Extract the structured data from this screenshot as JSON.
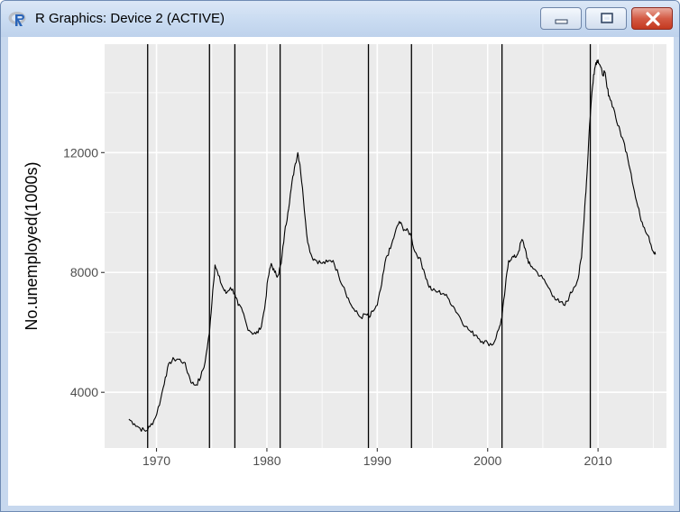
{
  "window": {
    "title": "R Graphics: Device 2 (ACTIVE)",
    "icon": "r-logo-icon",
    "buttons": [
      "minimize-icon",
      "maximize-icon",
      "close-icon"
    ]
  },
  "chart_data": {
    "type": "line",
    "title": "",
    "xlabel": "",
    "ylabel": "No.unemployed(1000s)",
    "xlim": [
      1965.3,
      2016.2
    ],
    "ylim": [
      2140,
      15620
    ],
    "x_ticks": [
      1970,
      1980,
      1990,
      2000,
      2010
    ],
    "x_tick_labels": [
      "1970",
      "1980",
      "1990",
      "2000",
      "2010"
    ],
    "y_ticks": [
      4000,
      8000,
      12000
    ],
    "y_tick_labels": [
      "4000",
      "8000",
      "12000"
    ],
    "grid": true,
    "background": "#ebebeb",
    "grid_color": "#ffffff",
    "line_color": "#000000",
    "vlines": [
      1969.2,
      1974.8,
      1977.1,
      1981.2,
      1989.2,
      1993.1,
      2001.3,
      2009.3
    ],
    "series": [
      {
        "name": "",
        "x": [
          1967.5,
          1968.0,
          1968.5,
          1969.0,
          1969.4,
          1969.9,
          1970.4,
          1970.8,
          1971.2,
          1971.6,
          1972.0,
          1972.5,
          1972.9,
          1973.2,
          1973.6,
          1974.0,
          1974.4,
          1974.8,
          1975.1,
          1975.3,
          1975.6,
          1976.0,
          1976.3,
          1976.7,
          1977.1,
          1977.4,
          1977.8,
          1978.2,
          1978.6,
          1979.0,
          1979.4,
          1979.8,
          1980.1,
          1980.4,
          1980.7,
          1981.0,
          1981.3,
          1981.6,
          1981.9,
          1982.2,
          1982.5,
          1982.8,
          1983.0,
          1983.3,
          1983.7,
          1984.1,
          1984.5,
          1985.0,
          1985.5,
          1986.0,
          1986.5,
          1987.0,
          1987.5,
          1988.0,
          1988.5,
          1989.0,
          1989.3,
          1989.6,
          1990.0,
          1990.4,
          1990.8,
          1991.2,
          1991.6,
          1992.0,
          1992.3,
          1992.6,
          1993.0,
          1993.4,
          1993.8,
          1994.2,
          1994.6,
          1995.0,
          1995.5,
          1996.0,
          1996.5,
          1997.0,
          1997.5,
          1998.0,
          1998.5,
          1999.0,
          1999.5,
          2000.0,
          2000.5,
          2001.0,
          2001.3,
          2001.6,
          2001.9,
          2002.2,
          2002.5,
          2002.8,
          2003.1,
          2003.4,
          2003.7,
          2004.0,
          2004.5,
          2005.0,
          2005.5,
          2006.0,
          2006.5,
          2007.0,
          2007.4,
          2007.8,
          2008.2,
          2008.5,
          2008.8,
          2009.0,
          2009.2,
          2009.4,
          2009.6,
          2009.8,
          2010.0,
          2010.2,
          2010.4,
          2010.6,
          2010.8,
          2011.0,
          2011.4,
          2011.8,
          2012.2,
          2012.6,
          2013.0,
          2013.4,
          2013.8,
          2014.2,
          2014.6,
          2015.0,
          2015.2
        ],
        "y": [
          3100,
          2950,
          2800,
          2700,
          2850,
          3150,
          3800,
          4500,
          5000,
          5100,
          5100,
          5000,
          4600,
          4300,
          4250,
          4500,
          5000,
          6000,
          7400,
          8250,
          7900,
          7500,
          7300,
          7500,
          7300,
          6900,
          6700,
          6200,
          6000,
          5950,
          6100,
          6800,
          7800,
          8300,
          8000,
          7900,
          8300,
          9300,
          10000,
          10800,
          11500,
          12000,
          11600,
          10500,
          9000,
          8500,
          8400,
          8300,
          8350,
          8400,
          7900,
          7500,
          7000,
          6700,
          6500,
          6600,
          6500,
          6700,
          6900,
          7600,
          8500,
          8800,
          9300,
          9700,
          9500,
          9400,
          9300,
          8700,
          8500,
          8100,
          7600,
          7400,
          7350,
          7300,
          7100,
          6800,
          6500,
          6200,
          6000,
          5900,
          5700,
          5650,
          5600,
          6100,
          6500,
          7500,
          8400,
          8500,
          8500,
          8700,
          9100,
          8800,
          8300,
          8200,
          8000,
          7800,
          7500,
          7200,
          7000,
          6900,
          7200,
          7500,
          7800,
          8500,
          10200,
          11300,
          12700,
          13800,
          14600,
          15000,
          15100,
          14900,
          14600,
          14700,
          14200,
          13900,
          13500,
          12900,
          12500,
          12000,
          11300,
          10500,
          9900,
          9500,
          9200,
          8700,
          8600
        ]
      }
    ]
  }
}
